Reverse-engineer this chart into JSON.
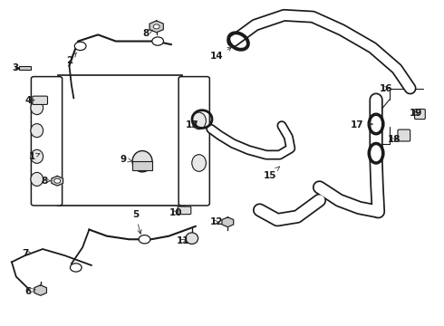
{
  "background_color": "#ffffff",
  "fig_width": 4.9,
  "fig_height": 3.6,
  "dpi": 100,
  "line_color": "#1a1a1a",
  "annotation_line_color": "#333333"
}
